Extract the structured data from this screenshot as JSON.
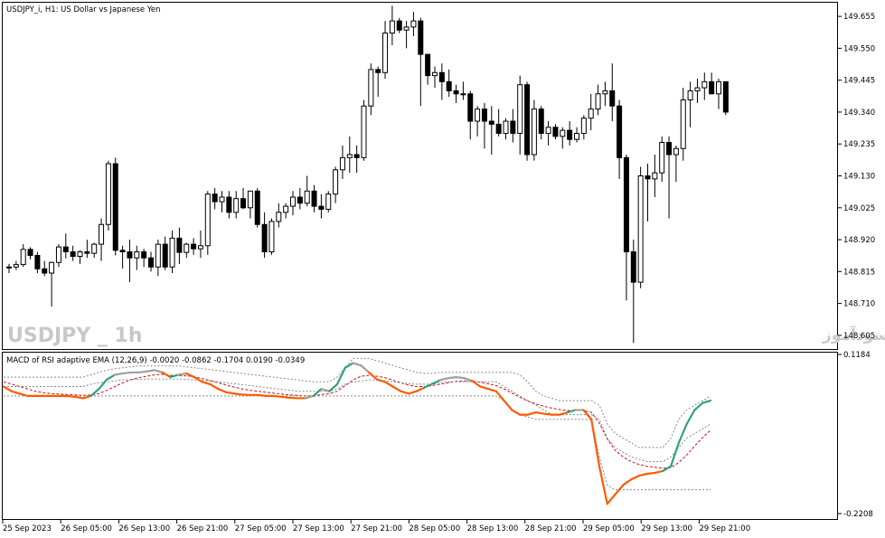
{
  "main_chart": {
    "title": "USDJPY_i, H1:  US Dollar vs Japanese Yen",
    "watermark_left": "USDJPY _ 1h",
    "watermark_right": "انتشار در سایت سودآموز",
    "y_ticks": [
      "149.655",
      "149.550",
      "149.445",
      "149.340",
      "149.235",
      "149.130",
      "149.025",
      "148.920",
      "148.815",
      "148.710",
      "148.605"
    ]
  },
  "indicator": {
    "title": "MACD of RSI adaptive EMA (12,26,9) -0.0020 -0.0862 -0.1704 0.0190 -0.0349",
    "y_ticks": [
      "0.1184",
      "-0.2208"
    ]
  },
  "x_ticks": [
    "25 Sep 2023",
    "26 Sep 05:00",
    "26 Sep 13:00",
    "26 Sep 21:00",
    "27 Sep 05:00",
    "27 Sep 13:00",
    "27 Sep 21:00",
    "28 Sep 05:00",
    "28 Sep 13:00",
    "28 Sep 21:00",
    "29 Sep 05:00",
    "29 Sep 13:00",
    "29 Sep 21:00"
  ],
  "chart_data": [
    {
      "type": "candlestick",
      "title": "USDJPY_i, H1:  US Dollar vs Japanese Yen",
      "y_range": [
        148.56,
        149.7
      ],
      "candles": [
        [
          148.828,
          148.84,
          148.81,
          148.83
        ],
        [
          148.83,
          148.85,
          148.82,
          148.838
        ],
        [
          148.838,
          148.905,
          148.83,
          148.888
        ],
        [
          148.888,
          148.895,
          148.855,
          148.868
        ],
        [
          148.868,
          148.88,
          148.81,
          148.824
        ],
        [
          148.824,
          148.85,
          148.8,
          148.81
        ],
        [
          148.81,
          148.848,
          148.7,
          148.845
        ],
        [
          148.845,
          148.905,
          148.83,
          148.896
        ],
        [
          148.896,
          148.94,
          148.858,
          148.88
        ],
        [
          148.88,
          148.9,
          148.85,
          148.865
        ],
        [
          148.865,
          148.885,
          148.84,
          148.88
        ],
        [
          148.88,
          148.92,
          148.86,
          148.875
        ],
        [
          148.875,
          148.91,
          148.86,
          148.905
        ],
        [
          148.905,
          148.99,
          148.85,
          148.97
        ],
        [
          148.97,
          149.18,
          148.95,
          149.17
        ],
        [
          149.17,
          149.19,
          148.868,
          148.885
        ],
        [
          148.885,
          148.9,
          148.825,
          148.88
        ],
        [
          148.88,
          148.92,
          148.78,
          148.86
        ],
        [
          148.86,
          148.9,
          148.82,
          148.88
        ],
        [
          148.88,
          148.89,
          148.83,
          148.86
        ],
        [
          148.86,
          148.88,
          148.815,
          148.83
        ],
        [
          148.83,
          148.92,
          148.8,
          148.905
        ],
        [
          148.905,
          148.93,
          148.82,
          148.83
        ],
        [
          148.83,
          148.95,
          148.81,
          148.925
        ],
        [
          148.925,
          148.96,
          148.84,
          148.878
        ],
        [
          148.878,
          148.91,
          148.86,
          148.905
        ],
        [
          148.905,
          148.925,
          148.87,
          148.89
        ],
        [
          148.89,
          148.95,
          148.86,
          148.9
        ],
        [
          148.9,
          149.08,
          148.87,
          149.07
        ],
        [
          149.07,
          149.09,
          149.02,
          149.045
        ],
        [
          149.045,
          149.08,
          149.01,
          149.06
        ],
        [
          149.06,
          149.08,
          148.99,
          149.01
        ],
        [
          149.01,
          149.08,
          148.99,
          149.055
        ],
        [
          149.055,
          149.09,
          149.02,
          149.025
        ],
        [
          149.025,
          149.08,
          148.99,
          149.08
        ],
        [
          149.08,
          149.09,
          148.96,
          148.97
        ],
        [
          148.97,
          149.01,
          148.86,
          148.88
        ],
        [
          148.88,
          148.99,
          148.87,
          148.98
        ],
        [
          148.98,
          149.04,
          148.96,
          149.01
        ],
        [
          149.01,
          149.04,
          148.99,
          149.03
        ],
        [
          149.03,
          149.08,
          149.0,
          149.06
        ],
        [
          149.06,
          149.09,
          149.02,
          149.04
        ],
        [
          149.04,
          149.13,
          149.03,
          149.08
        ],
        [
          149.08,
          149.1,
          149.01,
          149.03
        ],
        [
          149.03,
          149.07,
          148.99,
          149.02
        ],
        [
          149.02,
          149.08,
          149.01,
          149.07
        ],
        [
          149.07,
          149.16,
          149.04,
          149.15
        ],
        [
          149.15,
          149.23,
          149.12,
          149.19
        ],
        [
          149.19,
          149.26,
          149.14,
          149.2
        ],
        [
          149.2,
          149.23,
          149.14,
          149.19
        ],
        [
          149.19,
          149.38,
          149.18,
          149.36
        ],
        [
          149.36,
          149.5,
          149.33,
          149.48
        ],
        [
          149.48,
          149.49,
          149.39,
          149.47
        ],
        [
          149.47,
          149.64,
          149.45,
          149.6
        ],
        [
          149.6,
          149.69,
          149.56,
          149.64
        ],
        [
          149.64,
          149.65,
          149.6,
          149.61
        ],
        [
          149.61,
          149.64,
          149.55,
          149.62
        ],
        [
          149.62,
          149.67,
          149.59,
          149.64
        ],
        [
          149.64,
          149.65,
          149.36,
          149.53
        ],
        [
          149.53,
          149.53,
          149.43,
          149.46
        ],
        [
          149.46,
          149.49,
          149.42,
          149.47
        ],
        [
          149.47,
          149.5,
          149.38,
          149.44
        ],
        [
          149.44,
          149.48,
          149.39,
          149.41
        ],
        [
          149.41,
          149.43,
          149.37,
          149.4
        ],
        [
          149.4,
          149.44,
          149.38,
          149.4
        ],
        [
          149.4,
          149.41,
          149.25,
          149.31
        ],
        [
          149.31,
          149.36,
          149.26,
          149.35
        ],
        [
          149.35,
          149.37,
          149.22,
          149.31
        ],
        [
          149.31,
          149.36,
          149.2,
          149.3
        ],
        [
          149.3,
          149.35,
          149.26,
          149.27
        ],
        [
          149.27,
          149.32,
          149.25,
          149.31
        ],
        [
          149.31,
          149.35,
          149.24,
          149.27
        ],
        [
          149.27,
          149.46,
          149.2,
          149.43
        ],
        [
          149.43,
          149.44,
          149.18,
          149.2
        ],
        [
          149.2,
          149.38,
          149.18,
          149.35
        ],
        [
          149.35,
          149.36,
          149.25,
          149.27
        ],
        [
          149.27,
          149.31,
          149.23,
          149.29
        ],
        [
          149.29,
          149.3,
          149.25,
          149.26
        ],
        [
          149.26,
          149.29,
          149.22,
          149.28
        ],
        [
          149.28,
          149.31,
          149.23,
          149.25
        ],
        [
          149.25,
          149.29,
          149.24,
          149.27
        ],
        [
          149.27,
          149.33,
          149.25,
          149.32
        ],
        [
          149.32,
          149.4,
          149.28,
          149.35
        ],
        [
          149.35,
          149.43,
          149.33,
          149.4
        ],
        [
          149.4,
          149.44,
          149.36,
          149.41
        ],
        [
          149.41,
          149.5,
          149.31,
          149.36
        ],
        [
          149.36,
          149.38,
          149.12,
          149.19
        ],
        [
          149.19,
          149.2,
          148.72,
          148.88
        ],
        [
          148.88,
          148.92,
          148.58,
          148.78
        ],
        [
          148.78,
          149.16,
          148.76,
          149.13
        ],
        [
          149.13,
          149.17,
          148.98,
          149.12
        ],
        [
          149.12,
          149.2,
          149.06,
          149.14
        ],
        [
          149.14,
          149.26,
          149.11,
          149.24
        ],
        [
          149.24,
          149.26,
          148.99,
          149.2
        ],
        [
          149.2,
          149.23,
          149.11,
          149.22
        ],
        [
          149.22,
          149.42,
          149.18,
          149.38
        ],
        [
          149.38,
          149.44,
          149.29,
          149.41
        ],
        [
          149.41,
          149.45,
          149.37,
          149.42
        ],
        [
          149.42,
          149.47,
          149.38,
          149.44
        ],
        [
          149.44,
          149.47,
          149.4,
          149.4
        ],
        [
          149.4,
          149.45,
          149.35,
          149.44
        ],
        [
          149.44,
          149.44,
          149.33,
          149.34
        ]
      ],
      "bull_color": "#ffffff",
      "bear_color": "#000000"
    },
    {
      "type": "line",
      "title": "MACD of RSI adaptive EMA (12,26,9) -0.0020 -0.0862 -0.1704 0.0190 -0.0349",
      "y_range": [
        -0.2208,
        0.1184
      ],
      "series": [
        {
          "role": "macd",
          "colors": {
            "down": "#ff5a00",
            "up": "#2ea37a",
            "flat": "#a0a0a0"
          },
          "values": [
            0.05,
            0.04,
            0.035,
            0.03,
            0.03,
            0.03,
            0.03,
            0.03,
            0.03,
            0.028,
            0.025,
            0.03,
            0.045,
            0.065,
            0.075,
            0.078,
            0.08,
            0.08,
            0.082,
            0.085,
            0.08,
            0.07,
            0.075,
            0.078,
            0.07,
            0.06,
            0.055,
            0.045,
            0.038,
            0.035,
            0.033,
            0.032,
            0.032,
            0.03,
            0.03,
            0.028,
            0.026,
            0.025,
            0.025,
            0.03,
            0.045,
            0.04,
            0.055,
            0.09,
            0.1,
            0.095,
            0.08,
            0.065,
            0.06,
            0.05,
            0.04,
            0.035,
            0.04,
            0.048,
            0.056,
            0.064,
            0.068,
            0.07,
            0.068,
            0.062,
            0.05,
            0.045,
            0.04,
            0.02,
            0.0,
            -0.01,
            -0.01,
            -0.005,
            -0.008,
            -0.01,
            -0.01,
            -0.005,
            -0.0,
            0.0,
            -0.02,
            -0.12,
            -0.2,
            -0.18,
            -0.16,
            -0.148,
            -0.14,
            -0.136,
            -0.134,
            -0.13,
            -0.12,
            -0.07,
            -0.03,
            -0.0,
            0.015,
            0.02
          ]
        },
        {
          "role": "signal",
          "color": "#cc1111",
          "values": [
            0.06,
            0.055,
            0.05,
            0.045,
            0.04,
            0.037,
            0.035,
            0.034,
            0.033,
            0.032,
            0.031,
            0.032,
            0.035,
            0.042,
            0.05,
            0.058,
            0.064,
            0.069,
            0.072,
            0.075,
            0.076,
            0.074,
            0.073,
            0.073,
            0.071,
            0.067,
            0.063,
            0.058,
            0.053,
            0.049,
            0.045,
            0.042,
            0.04,
            0.038,
            0.036,
            0.034,
            0.032,
            0.031,
            0.03,
            0.03,
            0.033,
            0.035,
            0.04,
            0.052,
            0.064,
            0.072,
            0.074,
            0.072,
            0.069,
            0.064,
            0.058,
            0.053,
            0.05,
            0.05,
            0.052,
            0.055,
            0.058,
            0.061,
            0.062,
            0.062,
            0.059,
            0.056,
            0.052,
            0.045,
            0.036,
            0.027,
            0.019,
            0.013,
            0.008,
            0.004,
            0.001,
            -0.001,
            -0.001,
            -0.001,
            -0.005,
            -0.028,
            -0.062,
            -0.086,
            -0.1,
            -0.11,
            -0.116,
            -0.12,
            -0.122,
            -0.124,
            -0.123,
            -0.112,
            -0.096,
            -0.077,
            -0.059,
            -0.043
          ]
        },
        {
          "role": "upper_band",
          "color": "#888888",
          "style": "dashed",
          "values": [
            0.07,
            0.07,
            0.07,
            0.07,
            0.07,
            0.07,
            0.07,
            0.07,
            0.07,
            0.07,
            0.07,
            0.075,
            0.08,
            0.085,
            0.088,
            0.09,
            0.092,
            0.094,
            0.094,
            0.094,
            0.094,
            0.094,
            0.094,
            0.092,
            0.09,
            0.088,
            0.086,
            0.084,
            0.082,
            0.08,
            0.078,
            0.076,
            0.074,
            0.072,
            0.07,
            0.068,
            0.066,
            0.064,
            0.062,
            0.06,
            0.06,
            0.06,
            0.07,
            0.09,
            0.11,
            0.11,
            0.11,
            0.105,
            0.1,
            0.095,
            0.09,
            0.085,
            0.08,
            0.078,
            0.078,
            0.08,
            0.08,
            0.08,
            0.08,
            0.08,
            0.08,
            0.08,
            0.08,
            0.08,
            0.08,
            0.075,
            0.06,
            0.04,
            0.03,
            0.025,
            0.02,
            0.02,
            0.02,
            0.02,
            0.02,
            0.01,
            -0.03,
            -0.05,
            -0.06,
            -0.07,
            -0.08,
            -0.08,
            -0.08,
            -0.08,
            -0.06,
            -0.02,
            0.0,
            0.01,
            0.02,
            0.03
          ]
        },
        {
          "role": "mid_band",
          "color": "#888888",
          "style": "dashed",
          "values": [
            0.05,
            0.05,
            0.05,
            0.05,
            0.05,
            0.05,
            0.05,
            0.05,
            0.05,
            0.05,
            0.05,
            0.055,
            0.058,
            0.06,
            0.062,
            0.064,
            0.065,
            0.066,
            0.066,
            0.066,
            0.066,
            0.066,
            0.066,
            0.065,
            0.064,
            0.063,
            0.062,
            0.06,
            0.058,
            0.056,
            0.054,
            0.052,
            0.05,
            0.048,
            0.046,
            0.044,
            0.042,
            0.04,
            0.04,
            0.04,
            0.04,
            0.04,
            0.045,
            0.055,
            0.06,
            0.062,
            0.064,
            0.064,
            0.062,
            0.06,
            0.058,
            0.056,
            0.055,
            0.055,
            0.055,
            0.058,
            0.06,
            0.06,
            0.06,
            0.06,
            0.06,
            0.06,
            0.06,
            0.05,
            0.04,
            0.03,
            0.02,
            0.01,
            0.0,
            -0.01,
            -0.01,
            -0.01,
            -0.01,
            -0.01,
            -0.01,
            -0.02,
            -0.06,
            -0.08,
            -0.09,
            -0.1,
            -0.105,
            -0.11,
            -0.11,
            -0.11,
            -0.1,
            -0.08,
            -0.06,
            -0.05,
            -0.04,
            -0.03
          ]
        },
        {
          "role": "lower_band",
          "color": "#888888",
          "style": "dashed",
          "values": [
            0.03,
            0.03,
            0.03,
            0.03,
            0.03,
            0.03,
            0.03,
            0.03,
            0.03,
            0.03,
            0.03,
            0.03,
            0.03,
            0.03,
            0.03,
            0.03,
            0.03,
            0.03,
            0.03,
            0.03,
            0.03,
            0.03,
            0.03,
            0.03,
            0.03,
            0.03,
            0.03,
            0.03,
            0.03,
            0.03,
            0.03,
            0.03,
            0.03,
            0.03,
            0.03,
            0.03,
            0.03,
            0.03,
            0.03,
            0.03,
            0.03,
            0.03,
            0.03,
            0.03,
            0.03,
            0.03,
            0.03,
            0.03,
            0.03,
            0.03,
            0.03,
            0.03,
            0.03,
            0.03,
            0.03,
            0.03,
            0.03,
            0.03,
            0.03,
            0.03,
            0.03,
            0.03,
            0.03,
            0.02,
            0.0,
            -0.01,
            -0.015,
            -0.02,
            -0.02,
            -0.02,
            -0.02,
            -0.02,
            -0.02,
            -0.02,
            -0.02,
            -0.1,
            -0.16,
            -0.17,
            -0.17,
            -0.17,
            -0.17,
            -0.17,
            -0.17,
            -0.17,
            -0.17,
            -0.17,
            -0.17,
            -0.17,
            -0.17,
            -0.17
          ]
        }
      ]
    }
  ]
}
